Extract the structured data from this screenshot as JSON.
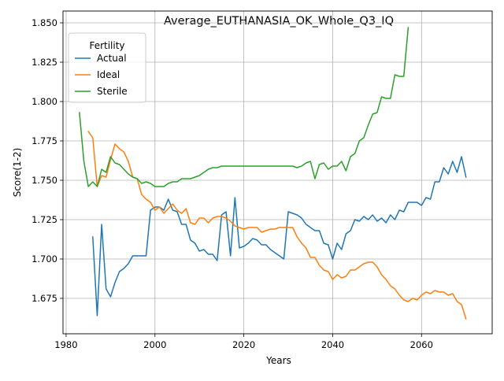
{
  "chart_data": {
    "type": "line",
    "title": "Average_EUTHANASIA_OK_Whole_Q3_IQ",
    "xlabel": "Years",
    "ylabel": "Score(1-2)",
    "xlim": [
      1979.3,
      1975.9
    ],
    "ylim": [
      1.6525,
      1.8575
    ],
    "x_ticks": [
      1980,
      2000,
      2020,
      2040,
      2060
    ],
    "y_ticks": [
      1.675,
      1.7,
      1.725,
      1.75,
      1.775,
      1.8,
      1.825,
      1.85
    ],
    "grid": true,
    "legend": {
      "title": "Fertility",
      "placement": "upper left"
    },
    "series": [
      {
        "name": "Actual",
        "color": "#1f77b4",
        "x": [
          1986,
          1987,
          1988,
          1989,
          1990,
          1991,
          1992,
          1993,
          1994,
          1995,
          1996,
          1997,
          1998,
          1999,
          2000,
          2001,
          2002,
          2003,
          2004,
          2005,
          2006,
          2007,
          2008,
          2009,
          2010,
          2011,
          2012,
          2013,
          2014,
          2015,
          2016,
          2017,
          2018,
          2019,
          2020,
          2021,
          2022,
          2023,
          2024,
          2025,
          2026,
          2027,
          2028,
          2029,
          2030,
          2031,
          2032,
          2033,
          2034,
          2035,
          2036,
          2037,
          2038,
          2039,
          2040,
          2041,
          2042,
          2043,
          2044,
          2045,
          2046,
          2047,
          2048,
          2049,
          2050,
          2051,
          2052,
          2053,
          2054,
          2055,
          2056,
          2057,
          2058,
          2059,
          2060,
          2061,
          2062,
          2063,
          2064,
          2065,
          2066,
          2067,
          2068,
          2069,
          2070
        ],
        "y": [
          1.714,
          1.664,
          1.722,
          1.681,
          1.676,
          1.685,
          1.692,
          1.694,
          1.697,
          1.702,
          1.702,
          1.702,
          1.702,
          1.731,
          1.733,
          1.733,
          1.731,
          1.738,
          1.731,
          1.73,
          1.722,
          1.722,
          1.712,
          1.71,
          1.705,
          1.706,
          1.703,
          1.703,
          1.699,
          1.728,
          1.73,
          1.702,
          1.739,
          1.707,
          1.708,
          1.71,
          1.713,
          1.712,
          1.709,
          1.709,
          1.706,
          1.704,
          1.702,
          1.7,
          1.73,
          1.729,
          1.728,
          1.726,
          1.722,
          1.72,
          1.718,
          1.718,
          1.71,
          1.709,
          1.7,
          1.71,
          1.706,
          1.716,
          1.718,
          1.725,
          1.724,
          1.727,
          1.725,
          1.728,
          1.724,
          1.726,
          1.723,
          1.728,
          1.725,
          1.731,
          1.73,
          1.736,
          1.736,
          1.736,
          1.734,
          1.739,
          1.738,
          1.749,
          1.749,
          1.758,
          1.754,
          1.762,
          1.755,
          1.765,
          1.752
        ]
      },
      {
        "name": "Ideal",
        "color": "#ff7f0e",
        "x": [
          1985,
          1986,
          1987,
          1988,
          1989,
          1990,
          1991,
          1992,
          1993,
          1994,
          1995,
          1996,
          1997,
          1998,
          1999,
          2000,
          2001,
          2002,
          2003,
          2004,
          2005,
          2006,
          2007,
          2008,
          2009,
          2010,
          2011,
          2012,
          2013,
          2014,
          2015,
          2016,
          2017,
          2018,
          2019,
          2020,
          2021,
          2022,
          2023,
          2024,
          2025,
          2026,
          2027,
          2028,
          2029,
          2030,
          2031,
          2032,
          2033,
          2034,
          2035,
          2036,
          2037,
          2038,
          2039,
          2040,
          2041,
          2042,
          2043,
          2044,
          2045,
          2046,
          2047,
          2048,
          2049,
          2050,
          2051,
          2052,
          2053,
          2054,
          2055,
          2056,
          2057,
          2058,
          2059,
          2060,
          2061,
          2062,
          2063,
          2064,
          2065,
          2066,
          2067,
          2068,
          2069,
          2070
        ],
        "y": [
          1.781,
          1.777,
          1.746,
          1.753,
          1.752,
          1.763,
          1.773,
          1.77,
          1.768,
          1.762,
          1.752,
          1.751,
          1.741,
          1.738,
          1.736,
          1.731,
          1.733,
          1.729,
          1.732,
          1.735,
          1.731,
          1.729,
          1.732,
          1.723,
          1.722,
          1.726,
          1.726,
          1.723,
          1.726,
          1.727,
          1.727,
          1.726,
          1.724,
          1.721,
          1.72,
          1.719,
          1.72,
          1.72,
          1.72,
          1.717,
          1.718,
          1.719,
          1.719,
          1.72,
          1.72,
          1.72,
          1.72,
          1.714,
          1.71,
          1.707,
          1.701,
          1.701,
          1.696,
          1.693,
          1.692,
          1.687,
          1.69,
          1.688,
          1.689,
          1.693,
          1.693,
          1.695,
          1.697,
          1.698,
          1.698,
          1.695,
          1.69,
          1.687,
          1.683,
          1.681,
          1.677,
          1.674,
          1.673,
          1.675,
          1.674,
          1.677,
          1.679,
          1.678,
          1.68,
          1.679,
          1.679,
          1.677,
          1.678,
          1.673,
          1.671,
          1.662
        ]
      },
      {
        "name": "Sterile",
        "color": "#2ca02c",
        "x": [
          1983,
          1984,
          1985,
          1986,
          1987,
          1988,
          1989,
          1990,
          1991,
          1992,
          1993,
          1994,
          1995,
          1996,
          1997,
          1998,
          1999,
          2000,
          2001,
          2002,
          2003,
          2004,
          2005,
          2006,
          2007,
          2008,
          2009,
          2010,
          2011,
          2012,
          2013,
          2014,
          2015,
          2016,
          2017,
          2018,
          2019,
          2020,
          2021,
          2022,
          2023,
          2024,
          2025,
          2026,
          2027,
          2028,
          2029,
          2030,
          2031,
          2032,
          2033,
          2034,
          2035,
          2036,
          2037,
          2038,
          2039,
          2040,
          2041,
          2042,
          2043,
          2044,
          2045,
          2046,
          2047,
          2048,
          2049,
          2050,
          2051,
          2052,
          2053,
          2054,
          2055,
          2056,
          2057
        ],
        "y": [
          1.793,
          1.762,
          1.746,
          1.749,
          1.746,
          1.757,
          1.755,
          1.765,
          1.761,
          1.76,
          1.757,
          1.754,
          1.752,
          1.751,
          1.748,
          1.749,
          1.748,
          1.746,
          1.746,
          1.746,
          1.748,
          1.749,
          1.749,
          1.751,
          1.751,
          1.751,
          1.752,
          1.753,
          1.755,
          1.757,
          1.758,
          1.758,
          1.759,
          1.759,
          1.759,
          1.759,
          1.759,
          1.759,
          1.759,
          1.759,
          1.759,
          1.759,
          1.759,
          1.759,
          1.759,
          1.759,
          1.759,
          1.759,
          1.759,
          1.758,
          1.759,
          1.761,
          1.762,
          1.751,
          1.76,
          1.761,
          1.757,
          1.759,
          1.759,
          1.762,
          1.756,
          1.765,
          1.767,
          1.775,
          1.777,
          1.785,
          1.792,
          1.793,
          1.803,
          1.802,
          1.802,
          1.817,
          1.816,
          1.816,
          1.847
        ]
      }
    ]
  }
}
